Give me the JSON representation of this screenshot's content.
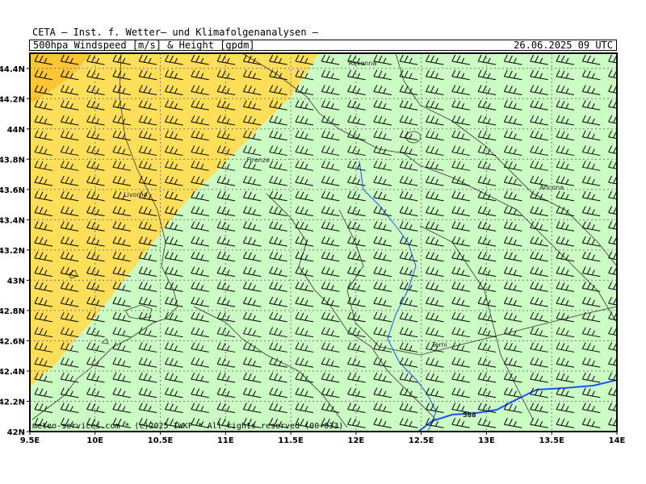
{
  "header": {
    "org": "CETA — Inst. f. Wetter— und Klimafolgenanalysen —",
    "variable": "500hpa_Windspeed_[m/s]_&_Height_[gpdm]",
    "valid_time": "26.06.2025 09 UTC"
  },
  "footer": {
    "copyright": "meteo-services.com * (c)2025 IWKF * All rights reserved (00+033)"
  },
  "map": {
    "lon_range": [
      9.5,
      14.0
    ],
    "lat_range": [
      42.0,
      44.5
    ],
    "lon_ticks": [
      "9.5E",
      "10E",
      "10.5E",
      "11E",
      "11.5E",
      "12E",
      "12.5E",
      "13E",
      "13.5E",
      "14E"
    ],
    "lat_ticks": [
      "44.4N",
      "44.2N",
      "44N",
      "43.8N",
      "43.6N",
      "43.4N",
      "43.2N",
      "43N",
      "42.8N",
      "42.6N",
      "42.4N",
      "42.2N",
      "42N"
    ],
    "cities": [
      {
        "name": "Ravenna",
        "lon": 12.05,
        "lat": 44.42
      },
      {
        "name": "Firenze",
        "lon": 11.25,
        "lat": 43.78
      },
      {
        "name": "Livorno",
        "lon": 10.31,
        "lat": 43.55
      },
      {
        "name": "Ancona",
        "lon": 13.5,
        "lat": 43.6
      },
      {
        "name": "Terni",
        "lon": 12.64,
        "lat": 42.56
      }
    ],
    "contour": {
      "label": "588",
      "color": "#1e50ff"
    },
    "fill_colors": {
      "green": "#cbfcc4",
      "yellow": "#ffdf5a",
      "orange": "#ffc633"
    }
  }
}
